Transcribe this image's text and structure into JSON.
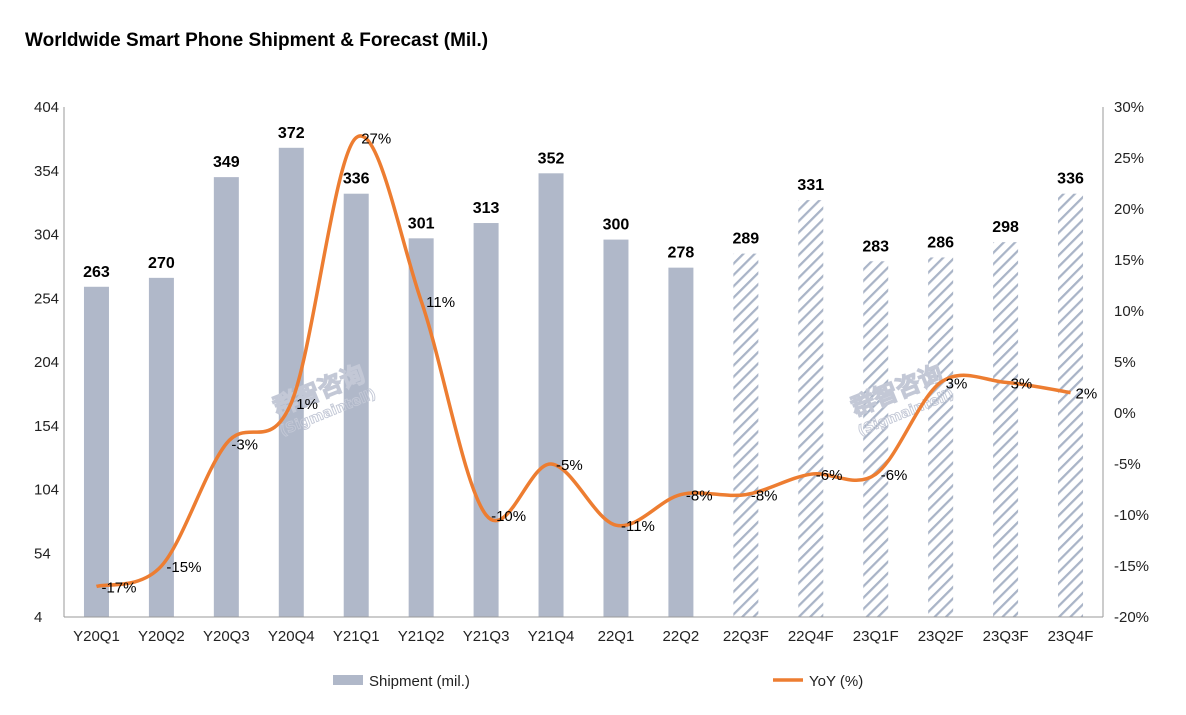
{
  "chart_data": {
    "type": "bar",
    "title": "Worldwide Smart Phone Shipment & Forecast (Mil.)",
    "categories": [
      "Y20Q1",
      "Y20Q2",
      "Y20Q3",
      "Y20Q4",
      "Y21Q1",
      "Y21Q2",
      "Y21Q3",
      "Y21Q4",
      "22Q1",
      "22Q2",
      "22Q3F",
      "22Q4F",
      "23Q1F",
      "23Q2F",
      "23Q3F",
      "23Q4F"
    ],
    "series": [
      {
        "name": "Shipment (mil.)",
        "type": "bar",
        "axis": "left",
        "values": [
          263,
          270,
          349,
          372,
          336,
          301,
          313,
          352,
          300,
          278,
          289,
          331,
          283,
          286,
          298,
          336
        ],
        "labels": [
          "263",
          "270",
          "349",
          "372",
          "336",
          "301",
          "313",
          "352",
          "300",
          "278",
          "289",
          "331",
          "283",
          "286",
          "298",
          "336"
        ],
        "forecast": [
          false,
          false,
          false,
          false,
          false,
          false,
          false,
          false,
          false,
          false,
          true,
          true,
          true,
          true,
          true,
          true
        ]
      },
      {
        "name": "YoY (%)",
        "type": "line",
        "axis": "right",
        "values": [
          -17,
          -15,
          -3,
          1,
          27,
          11,
          -10,
          -5,
          -11,
          -8,
          -8,
          -6,
          -6,
          3,
          3,
          2
        ],
        "labels": [
          "-17%",
          "-15%",
          "-3%",
          "1%",
          "27%",
          "11%",
          "-10%",
          "-5%",
          "-11%",
          "-8%",
          "-8%",
          "-6%",
          "-6%",
          "3%",
          "3%",
          "2%"
        ]
      }
    ],
    "y_left": {
      "min": 4,
      "max": 404,
      "ticks": [
        "4",
        "54",
        "104",
        "154",
        "204",
        "254",
        "304",
        "354",
        "404"
      ]
    },
    "y_right": {
      "min": -20,
      "max": 30,
      "ticks": [
        "-20%",
        "-15%",
        "-10%",
        "-5%",
        "0%",
        "5%",
        "10%",
        "15%",
        "20%",
        "25%",
        "30%"
      ]
    },
    "legend_position": "bottom",
    "grid": false,
    "colors": {
      "bar": "#b0b8c9",
      "forecast_hatch": "#a9b4c7",
      "line": "#ed7d31"
    },
    "watermark": {
      "cn": "群智咨询",
      "en": "(Sigmaintell)"
    }
  }
}
